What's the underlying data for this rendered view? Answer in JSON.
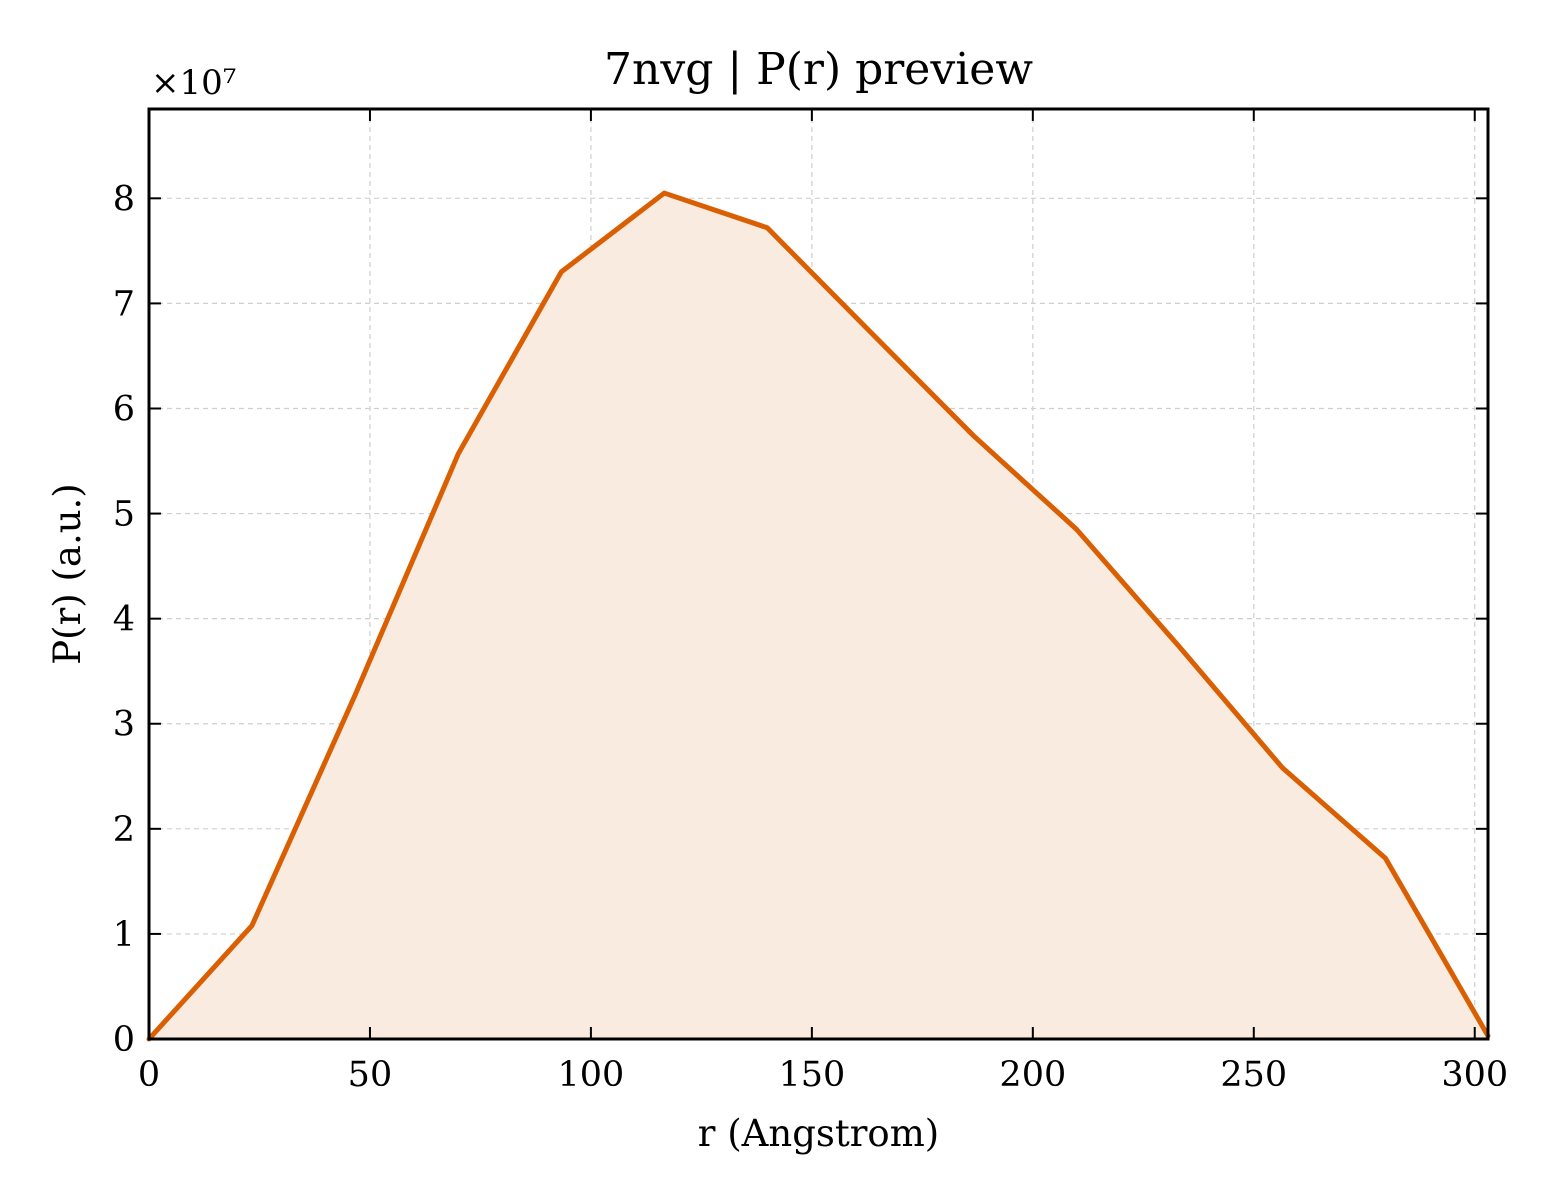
{
  "chart_data": {
    "type": "line",
    "title": "7nvg | P(r) preview",
    "xlabel": "r (Angstrom)",
    "ylabel": "P(r) (a.u.)",
    "y_offset_label": "×10⁷",
    "xlim": [
      0,
      303
    ],
    "ylim": [
      0,
      8.85
    ],
    "y_multiplier": 10000000,
    "x_ticks": [
      0,
      50,
      100,
      150,
      200,
      250,
      300
    ],
    "x_tick_labels": [
      "0",
      "50",
      "100",
      "150",
      "200",
      "250",
      "300"
    ],
    "y_ticks": [
      0,
      1,
      2,
      3,
      4,
      5,
      6,
      7,
      8
    ],
    "y_tick_labels": [
      "0",
      "1",
      "2",
      "3",
      "4",
      "5",
      "6",
      "7",
      "8"
    ],
    "grid": true,
    "filled": true,
    "series": [
      {
        "color": "#d95f02",
        "fill_color": "#f9ebe0",
        "x": [
          0,
          23.3,
          46.6,
          70.0,
          93.3,
          116.6,
          139.9,
          163.2,
          186.6,
          209.9,
          233.2,
          256.5,
          279.8,
          303.0
        ],
        "y": [
          0.0,
          1.08,
          3.27,
          5.57,
          7.3,
          8.05,
          7.72,
          6.73,
          5.74,
          4.85,
          3.73,
          2.58,
          1.72,
          0.03
        ]
      }
    ]
  }
}
